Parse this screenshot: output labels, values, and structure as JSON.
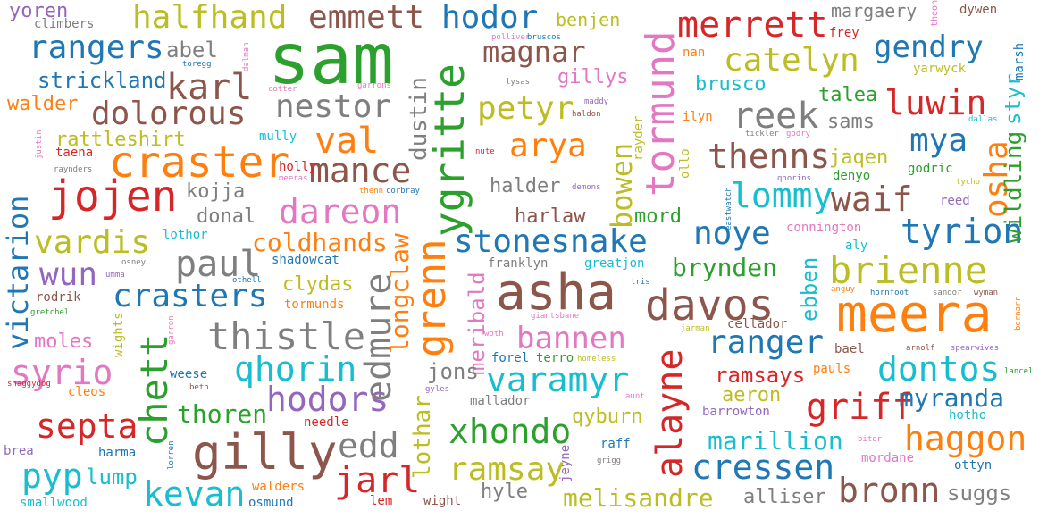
{
  "words": [
    {
      "text": "sam",
      "color": "#2ca02c"
    },
    {
      "text": "meera",
      "color": "#ff7f0e"
    },
    {
      "text": "asha",
      "color": "#8c564b"
    },
    {
      "text": "ygritte",
      "color": "#2ca02c"
    },
    {
      "text": "tormund",
      "color": "#e377c2"
    },
    {
      "text": "gilly",
      "color": "#8c564b"
    },
    {
      "text": "craster",
      "color": "#ff7f0e"
    },
    {
      "text": "jojen",
      "color": "#d62728"
    },
    {
      "text": "davos",
      "color": "#8c564b"
    },
    {
      "text": "brienne",
      "color": "#bcbd22"
    },
    {
      "text": "grenn",
      "color": "#ff7f0e"
    },
    {
      "text": "alayne",
      "color": "#d62728"
    },
    {
      "text": "chett",
      "color": "#2ca02c"
    },
    {
      "text": "victarion",
      "color": "#1f77b4"
    },
    {
      "text": "stonesnake",
      "color": "#1f77b4"
    },
    {
      "text": "thistle",
      "color": "#7f7f7f"
    },
    {
      "text": "merrett",
      "color": "#d62728"
    },
    {
      "text": "halfhand",
      "color": "#bcbd22"
    },
    {
      "text": "emmett",
      "color": "#8c564b"
    },
    {
      "text": "hodor",
      "color": "#1f77b4"
    },
    {
      "text": "rangers",
      "color": "#1f77b4"
    },
    {
      "text": "dolorous",
      "color": "#8c564b"
    },
    {
      "text": "nestor",
      "color": "#7f7f7f"
    },
    {
      "text": "magnar",
      "color": "#8c564b"
    },
    {
      "text": "catelyn",
      "color": "#bcbd22"
    },
    {
      "text": "gendry",
      "color": "#1f77b4"
    },
    {
      "text": "karl",
      "color": "#8c564b"
    },
    {
      "text": "petyr",
      "color": "#bcbd22"
    },
    {
      "text": "luwin",
      "color": "#d62728"
    },
    {
      "text": "reek",
      "color": "#7f7f7f"
    },
    {
      "text": "mance",
      "color": "#8c564b"
    },
    {
      "text": "val",
      "color": "#ff7f0e"
    },
    {
      "text": "arya",
      "color": "#ff7f0e"
    },
    {
      "text": "thenns",
      "color": "#8c564b"
    },
    {
      "text": "mya",
      "color": "#1f77b4"
    },
    {
      "text": "waif",
      "color": "#8c564b"
    },
    {
      "text": "osha",
      "color": "#ff7f0e"
    },
    {
      "text": "dareon",
      "color": "#e377c2"
    },
    {
      "text": "vardis",
      "color": "#bcbd22"
    },
    {
      "text": "lommy",
      "color": "#17becf"
    },
    {
      "text": "noye",
      "color": "#1f77b4"
    },
    {
      "text": "tyrion",
      "color": "#1f77b4"
    },
    {
      "text": "paul",
      "color": "#7f7f7f"
    },
    {
      "text": "wun",
      "color": "#9467bd"
    },
    {
      "text": "crasters",
      "color": "#1f77b4"
    },
    {
      "text": "bannen",
      "color": "#e377c2"
    },
    {
      "text": "ranger",
      "color": "#1f77b4"
    },
    {
      "text": "qhorin",
      "color": "#17becf"
    },
    {
      "text": "syrio",
      "color": "#e377c2"
    },
    {
      "text": "varamyr",
      "color": "#17becf"
    },
    {
      "text": "dontos",
      "color": "#17becf"
    },
    {
      "text": "hodors",
      "color": "#9467bd"
    },
    {
      "text": "edmure",
      "color": "#7f7f7f"
    },
    {
      "text": "griff",
      "color": "#d62728"
    },
    {
      "text": "septa",
      "color": "#d62728"
    },
    {
      "text": "xhondo",
      "color": "#2ca02c"
    },
    {
      "text": "haggon",
      "color": "#ff7f0e"
    },
    {
      "text": "edd",
      "color": "#7f7f7f"
    },
    {
      "text": "jarl",
      "color": "#d62728"
    },
    {
      "text": "ramsay",
      "color": "#bcbd22"
    },
    {
      "text": "cressen",
      "color": "#1f77b4"
    },
    {
      "text": "pyp",
      "color": "#17becf"
    },
    {
      "text": "kevan",
      "color": "#17becf"
    },
    {
      "text": "bronn",
      "color": "#8c564b"
    },
    {
      "text": "melisandre",
      "color": "#bcbd22"
    },
    {
      "text": "strickland",
      "color": "#1f77b4"
    },
    {
      "text": "rattleshirt",
      "color": "#bcbd22"
    },
    {
      "text": "coldhands",
      "color": "#ff7f0e"
    },
    {
      "text": "brynden",
      "color": "#2ca02c"
    },
    {
      "text": "thoren",
      "color": "#2ca02c"
    },
    {
      "text": "marillion",
      "color": "#17becf"
    },
    {
      "text": "myranda",
      "color": "#1f77b4"
    },
    {
      "text": "bowen",
      "color": "#bcbd22"
    },
    {
      "text": "dustin",
      "color": "#7f7f7f"
    },
    {
      "text": "longclaw",
      "color": "#ff7f0e"
    },
    {
      "text": "meribald",
      "color": "#e377c2"
    },
    {
      "text": "lothar",
      "color": "#bcbd22"
    },
    {
      "text": "wildling",
      "color": "#2ca02c"
    },
    {
      "text": "styr",
      "color": "#17becf"
    },
    {
      "text": "ebben",
      "color": "#17becf"
    },
    {
      "text": "abel",
      "color": "#7f7f7f"
    },
    {
      "text": "walder",
      "color": "#ff7f0e"
    },
    {
      "text": "kojja",
      "color": "#7f7f7f"
    },
    {
      "text": "donal",
      "color": "#7f7f7f"
    },
    {
      "text": "clydas",
      "color": "#bcbd22"
    },
    {
      "text": "moles",
      "color": "#e377c2"
    },
    {
      "text": "lump",
      "color": "#17becf"
    },
    {
      "text": "harlaw",
      "color": "#8c564b"
    },
    {
      "text": "mord",
      "color": "#2ca02c"
    },
    {
      "text": "halder",
      "color": "#7f7f7f"
    },
    {
      "text": "jons",
      "color": "#7f7f7f"
    },
    {
      "text": "qyburn",
      "color": "#bcbd22"
    },
    {
      "text": "hyle",
      "color": "#7f7f7f"
    },
    {
      "text": "alliser",
      "color": "#7f7f7f"
    },
    {
      "text": "suggs",
      "color": "#7f7f7f"
    },
    {
      "text": "ramsays",
      "color": "#d62728"
    },
    {
      "text": "aeron",
      "color": "#bcbd22"
    },
    {
      "text": "gillys",
      "color": "#e377c2"
    },
    {
      "text": "brusco",
      "color": "#17becf"
    },
    {
      "text": "talea",
      "color": "#2ca02c"
    },
    {
      "text": "sams",
      "color": "#7f7f7f"
    },
    {
      "text": "jaqen",
      "color": "#bcbd22"
    },
    {
      "text": "margaery",
      "color": "#7f7f7f"
    },
    {
      "text": "benjen",
      "color": "#bcbd22"
    },
    {
      "text": "yoren",
      "color": "#9467bd"
    },
    {
      "text": "climbers",
      "color": "#7f7f7f"
    },
    {
      "text": "theon",
      "color": "#e377c2"
    },
    {
      "text": "dywen",
      "color": "#8c564b"
    },
    {
      "text": "frey",
      "color": "#d62728"
    },
    {
      "text": "marsh",
      "color": "#1f77b4"
    },
    {
      "text": "polliver",
      "color": "#e377c2"
    },
    {
      "text": "bruscos",
      "color": "#1f77b4"
    },
    {
      "text": "toregg",
      "color": "#1f77b4"
    },
    {
      "text": "dalman",
      "color": "#e377c2"
    },
    {
      "text": "nan",
      "color": "#ff7f0e"
    },
    {
      "text": "yarwyck",
      "color": "#bcbd22"
    },
    {
      "text": "cotter",
      "color": "#e377c2"
    },
    {
      "text": "garrons",
      "color": "#e377c2"
    },
    {
      "text": "lysas",
      "color": "#7f7f7f"
    },
    {
      "text": "maddy",
      "color": "#9467bd"
    },
    {
      "text": "haldon",
      "color": "#8c564b"
    },
    {
      "text": "ilyn",
      "color": "#ff7f0e"
    },
    {
      "text": "dallas",
      "color": "#17becf"
    },
    {
      "text": "justin",
      "color": "#e377c2"
    },
    {
      "text": "taena",
      "color": "#d62728"
    },
    {
      "text": "mully",
      "color": "#17becf"
    },
    {
      "text": "nute",
      "color": "#d62728"
    },
    {
      "text": "rayder",
      "color": "#bcbd22"
    },
    {
      "text": "tickler",
      "color": "#7f7f7f"
    },
    {
      "text": "godry",
      "color": "#e377c2"
    },
    {
      "text": "raynders",
      "color": "#7f7f7f"
    },
    {
      "text": "holly",
      "color": "#d62728"
    },
    {
      "text": "meeras",
      "color": "#e377c2"
    },
    {
      "text": "godric",
      "color": "#2ca02c"
    },
    {
      "text": "tycho",
      "color": "#bcbd22"
    },
    {
      "text": "qhorins",
      "color": "#9467bd"
    },
    {
      "text": "denyo",
      "color": "#2ca02c"
    },
    {
      "text": "ollo",
      "color": "#bcbd22"
    },
    {
      "text": "demons",
      "color": "#9467bd"
    },
    {
      "text": "thenn",
      "color": "#ff7f0e"
    },
    {
      "text": "corbray",
      "color": "#1f77b4"
    },
    {
      "text": "eastwatch",
      "color": "#1f77b4"
    },
    {
      "text": "reed",
      "color": "#9467bd"
    },
    {
      "text": "lothor",
      "color": "#17becf"
    },
    {
      "text": "connington",
      "color": "#e377c2"
    },
    {
      "text": "aly",
      "color": "#17becf"
    },
    {
      "text": "shadowcat",
      "color": "#1f77b4"
    },
    {
      "text": "osney",
      "color": "#7f7f7f"
    },
    {
      "text": "umma",
      "color": "#9467bd"
    },
    {
      "text": "franklyn",
      "color": "#7f7f7f"
    },
    {
      "text": "greatjon",
      "color": "#17becf"
    },
    {
      "text": "othell",
      "color": "#1f77b4"
    },
    {
      "text": "tris",
      "color": "#1f77b4"
    },
    {
      "text": "rodrik",
      "color": "#8c564b"
    },
    {
      "text": "tormunds",
      "color": "#ff7f0e"
    },
    {
      "text": "gretchel",
      "color": "#2ca02c"
    },
    {
      "text": "anguy",
      "color": "#ff7f0e"
    },
    {
      "text": "hornfoot",
      "color": "#1f77b4"
    },
    {
      "text": "sandor",
      "color": "#7f7f7f"
    },
    {
      "text": "wyman",
      "color": "#8c564b"
    },
    {
      "text": "giantsbane",
      "color": "#e377c2"
    },
    {
      "text": "cellador",
      "color": "#8c564b"
    },
    {
      "text": "bernarr",
      "color": "#ff7f0e"
    },
    {
      "text": "garron",
      "color": "#e377c2"
    },
    {
      "text": "woth",
      "color": "#e377c2"
    },
    {
      "text": "jarman",
      "color": "#bcbd22"
    },
    {
      "text": "bael",
      "color": "#8c564b"
    },
    {
      "text": "arnolf",
      "color": "#8c564b"
    },
    {
      "text": "spearwives",
      "color": "#9467bd"
    },
    {
      "text": "wights",
      "color": "#bcbd22"
    },
    {
      "text": "forel",
      "color": "#1f77b4"
    },
    {
      "text": "terro",
      "color": "#2ca02c"
    },
    {
      "text": "homeless",
      "color": "#bcbd22"
    },
    {
      "text": "pauls",
      "color": "#ff7f0e"
    },
    {
      "text": "lancel",
      "color": "#2ca02c"
    },
    {
      "text": "weese",
      "color": "#1f77b4"
    },
    {
      "text": "beth",
      "color": "#8c564b"
    },
    {
      "text": "gyles",
      "color": "#9467bd"
    },
    {
      "text": "aunt",
      "color": "#e377c2"
    },
    {
      "text": "shaggydog",
      "color": "#d62728"
    },
    {
      "text": "cleos",
      "color": "#ff7f0e"
    },
    {
      "text": "mallador",
      "color": "#7f7f7f"
    },
    {
      "text": "barrowton",
      "color": "#9467bd"
    },
    {
      "text": "hotho",
      "color": "#17becf"
    },
    {
      "text": "needle",
      "color": "#d62728"
    },
    {
      "text": "biter",
      "color": "#e377c2"
    },
    {
      "text": "brea",
      "color": "#9467bd"
    },
    {
      "text": "harma",
      "color": "#1f77b4"
    },
    {
      "text": "raff",
      "color": "#1f77b4"
    },
    {
      "text": "jeyne",
      "color": "#9467bd"
    },
    {
      "text": "grigg",
      "color": "#7f7f7f"
    },
    {
      "text": "mordane",
      "color": "#e377c2"
    },
    {
      "text": "ottyn",
      "color": "#1f77b4"
    },
    {
      "text": "lorren",
      "color": "#1f77b4"
    },
    {
      "text": "walders",
      "color": "#ff7f0e"
    },
    {
      "text": "smallwood",
      "color": "#17becf"
    },
    {
      "text": "osmund",
      "color": "#1f77b4"
    },
    {
      "text": "lem",
      "color": "#d62728"
    },
    {
      "text": "wight",
      "color": "#8c564b"
    }
  ]
}
